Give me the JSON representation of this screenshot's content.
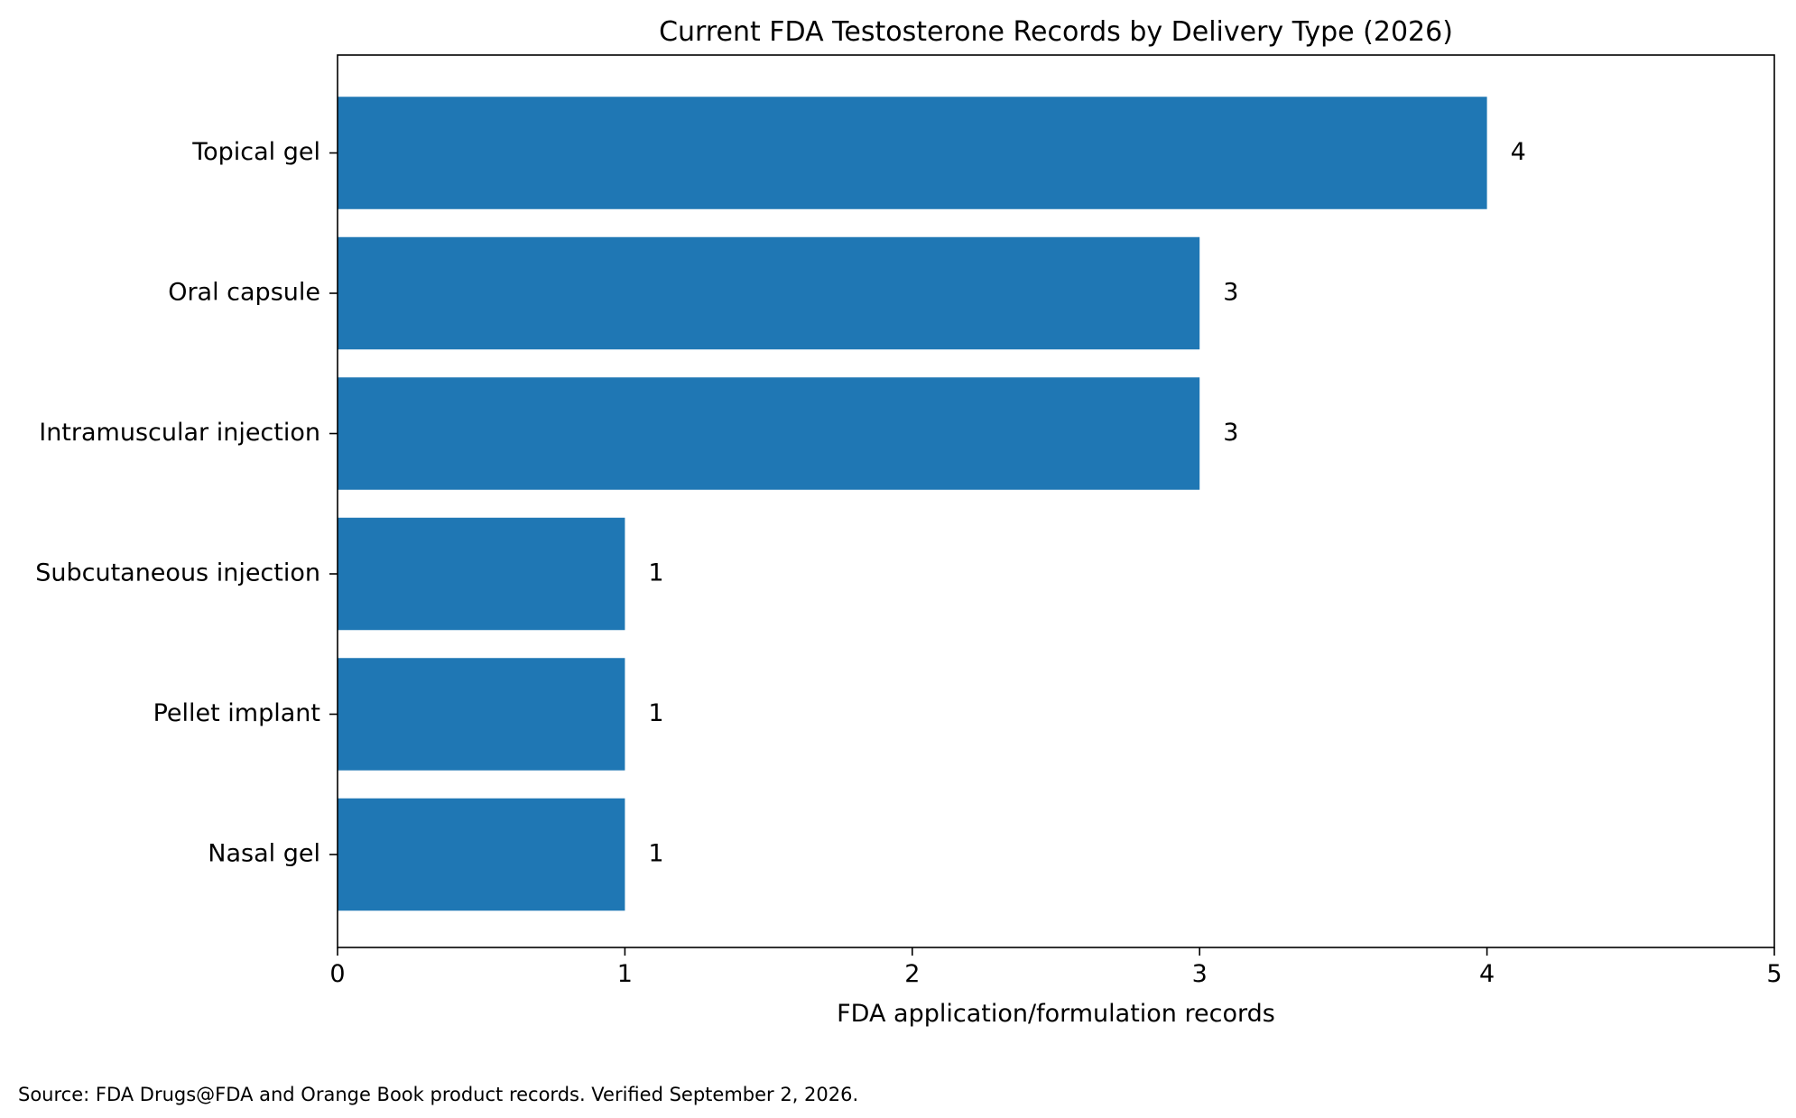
{
  "chart_data": {
    "type": "bar",
    "orientation": "horizontal",
    "title": "Current FDA Testosterone Records by Delivery Type (2026)",
    "xlabel": "FDA application/formulation records",
    "ylabel": "",
    "categories": [
      "Topical gel",
      "Oral capsule",
      "Intramuscular injection",
      "Subcutaneous injection",
      "Pellet implant",
      "Nasal gel"
    ],
    "values": [
      4,
      3,
      3,
      1,
      1,
      1
    ],
    "data_labels": [
      "4",
      "3",
      "3",
      "1",
      "1",
      "1"
    ],
    "xlim": [
      0,
      5
    ],
    "xticks": [
      0,
      1,
      2,
      3,
      4,
      5
    ],
    "xtick_labels": [
      "0",
      "1",
      "2",
      "3",
      "4",
      "5"
    ],
    "bar_color": "#1f77b4",
    "grid": false,
    "legend": "none"
  },
  "source_note": "Source: FDA Drugs@FDA and Orange Book product records. Verified September 2, 2026."
}
